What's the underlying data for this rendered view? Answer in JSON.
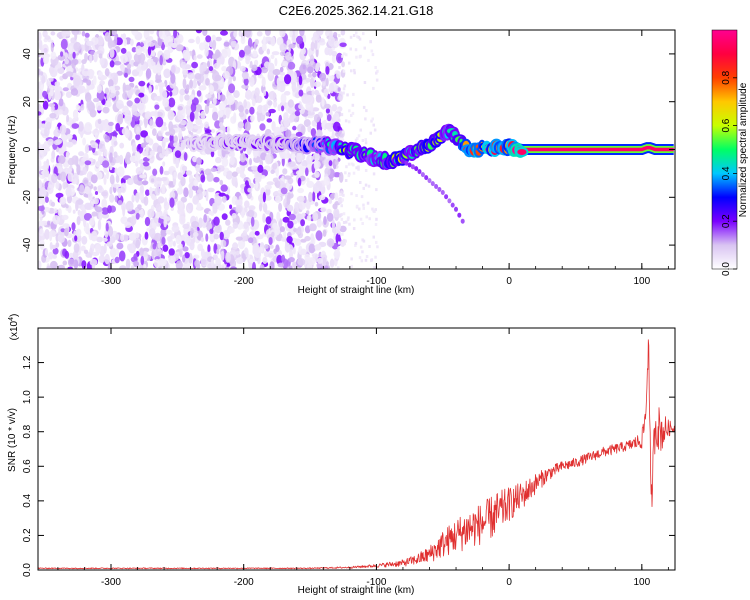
{
  "title": "C2E6.2025.362.14.21.G18",
  "chart_data": [
    {
      "type": "heatmap",
      "xlabel": "Height of straight line (km)",
      "ylabel": "Frequency (Hz)",
      "xlim": [
        -355,
        125
      ],
      "ylim": [
        -50,
        50
      ],
      "xticks": [
        -300,
        -200,
        -100,
        0,
        100
      ],
      "yticks": [
        -40,
        -20,
        0,
        20,
        40
      ],
      "grid": false,
      "colorbar": {
        "label": "Normalized spectral amplitude",
        "range": [
          0,
          1
        ],
        "ticks": [
          "0.0",
          "0.2",
          "0.4",
          "0.6",
          "0.8"
        ],
        "colors": [
          "#ffffff",
          "#d9c4f2",
          "#7a00ff",
          "#0000ff",
          "#00c8ff",
          "#00ff64",
          "#c8ff00",
          "#ffc800",
          "#ff4000",
          "#ff0040",
          "#ff0090"
        ]
      },
      "noise_region": {
        "x_range": [
          -355,
          -125
        ],
        "y_range": [
          -50,
          50
        ],
        "amplitude_range": [
          0.0,
          0.2
        ]
      },
      "signal_track": {
        "x": [
          -240,
          -200,
          -160,
          -140,
          -130,
          -120,
          -110,
          -100,
          -90,
          -80,
          -70,
          -60,
          -50,
          -45,
          -40,
          -35,
          -30,
          -20,
          -10,
          0,
          10,
          50,
          100,
          105,
          110,
          125
        ],
        "y": [
          3,
          3,
          2,
          2,
          1,
          0,
          -2,
          -4,
          -5,
          -3,
          -1,
          2,
          6,
          8,
          5,
          2,
          0,
          0,
          1,
          1,
          0,
          0,
          0,
          1,
          0,
          0
        ],
        "amplitude": [
          0.15,
          0.2,
          0.25,
          0.35,
          0.5,
          0.6,
          0.55,
          0.5,
          0.55,
          0.6,
          0.55,
          0.6,
          0.55,
          0.5,
          0.6,
          0.7,
          0.85,
          0.9,
          0.85,
          0.9,
          1.0,
          1.0,
          0.95,
          0.5,
          0.95,
          1.0
        ]
      },
      "secondary_branch": {
        "x": [
          -80,
          -70,
          -60,
          -50,
          -40,
          -35
        ],
        "y": [
          -5,
          -8,
          -13,
          -18,
          -25,
          -30
        ]
      }
    },
    {
      "type": "line",
      "xlabel": "Height of straight line (km)",
      "ylabel": "SNR (10 * v/v)",
      "y_scale_label": "(x10",
      "y_scale_exponent": "4",
      "xlim": [
        -355,
        125
      ],
      "ylim": [
        0,
        1.4
      ],
      "xticks": [
        -300,
        -200,
        -100,
        0,
        100
      ],
      "yticks": [
        "0.0",
        "0.2",
        "0.4",
        "0.6",
        "0.8",
        "1.0",
        "1.2"
      ],
      "grid": false,
      "series": [
        {
          "color": "#e03030",
          "x": [
            -355,
            -150,
            -120,
            -100,
            -80,
            -70,
            -60,
            -50,
            -40,
            -30,
            -20,
            -10,
            0,
            10,
            20,
            30,
            40,
            50,
            60,
            70,
            80,
            90,
            100,
            103,
            105,
            107,
            110,
            115,
            120,
            125
          ],
          "y": [
            0.01,
            0.01,
            0.015,
            0.025,
            0.04,
            0.06,
            0.09,
            0.15,
            0.2,
            0.24,
            0.27,
            0.32,
            0.38,
            0.43,
            0.5,
            0.56,
            0.6,
            0.62,
            0.65,
            0.68,
            0.7,
            0.72,
            0.75,
            0.9,
            1.35,
            0.35,
            0.85,
            0.8,
            0.82,
            0.82
          ],
          "noise_amplitude": [
            0.003,
            0.003,
            0.005,
            0.01,
            0.02,
            0.03,
            0.05,
            0.08,
            0.1,
            0.12,
            0.12,
            0.13,
            0.1,
            0.08,
            0.06,
            0.04,
            0.03,
            0.03,
            0.03,
            0.03,
            0.03,
            0.03,
            0.05,
            0.1,
            0.1,
            0.1,
            0.15,
            0.12,
            0.05,
            0.02
          ]
        }
      ]
    }
  ]
}
